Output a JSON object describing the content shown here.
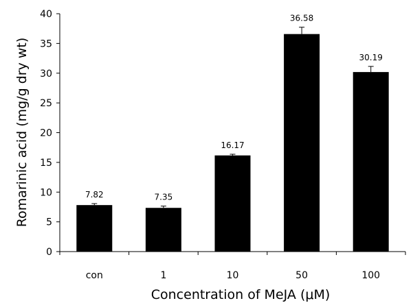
{
  "chart_data": {
    "type": "bar",
    "title": "",
    "xlabel": "Concentration of MeJA (μM)",
    "ylabel": "Romarinic acid (mg/g dry wt)",
    "categories": [
      "con",
      "1",
      "10",
      "50",
      "100"
    ],
    "values": [
      7.82,
      7.35,
      16.17,
      36.58,
      30.19
    ],
    "errors": [
      0.25,
      0.3,
      0.2,
      1.15,
      0.95
    ],
    "value_labels": [
      "7.82",
      "7.35",
      "16.17",
      "36.58",
      "30.19"
    ],
    "ylim": [
      0,
      40
    ],
    "yticks": [
      0,
      5,
      10,
      15,
      20,
      25,
      30,
      35,
      40
    ],
    "grid": false,
    "legend": "none",
    "bar_color": "#000000"
  }
}
